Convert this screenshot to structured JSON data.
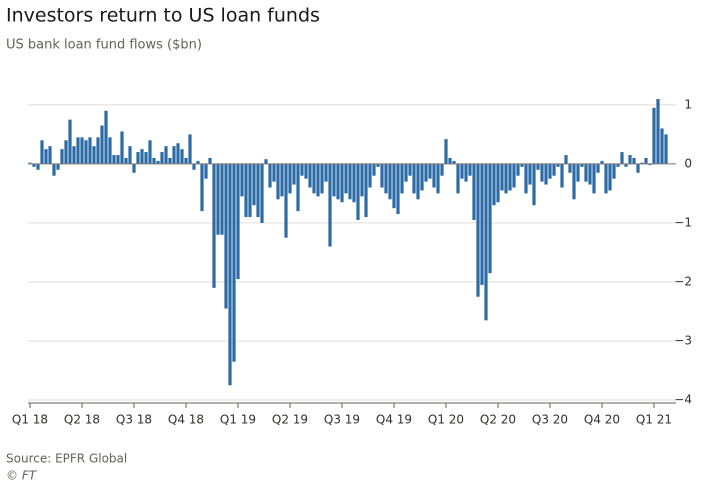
{
  "chart_data": {
    "type": "bar",
    "title": "Investors return to US loan funds",
    "subtitle": "US bank loan fund flows ($bn)",
    "source": "Source: EPFR Global",
    "credit": "© FT",
    "color": "#2c6aa6",
    "categories": [
      "Q1 18",
      null,
      null,
      null,
      null,
      null,
      null,
      null,
      null,
      null,
      null,
      null,
      null,
      "Q2 18",
      null,
      null,
      null,
      null,
      null,
      null,
      null,
      null,
      null,
      null,
      null,
      null,
      "Q3 18",
      null,
      null,
      null,
      null,
      null,
      null,
      null,
      null,
      null,
      null,
      null,
      null,
      "Q4 18",
      null,
      null,
      null,
      null,
      null,
      null,
      null,
      null,
      null,
      null,
      null,
      null,
      "Q1 19",
      null,
      null,
      null,
      null,
      null,
      null,
      null,
      null,
      null,
      null,
      null,
      null,
      "Q2 19",
      null,
      null,
      null,
      null,
      null,
      null,
      null,
      null,
      null,
      null,
      null,
      null,
      "Q3 19",
      null,
      null,
      null,
      null,
      null,
      null,
      null,
      null,
      null,
      null,
      null,
      null,
      "Q4 19",
      null,
      null,
      null,
      null,
      null,
      null,
      null,
      null,
      null,
      null,
      null,
      null,
      "Q1 20",
      null,
      null,
      null,
      null,
      null,
      null,
      null,
      null,
      null,
      null,
      null,
      null,
      "Q2 20",
      null,
      null,
      null,
      null,
      null,
      null,
      null,
      null,
      null,
      null,
      null,
      null,
      "Q3 20",
      null,
      null,
      null,
      null,
      null,
      null,
      null,
      null,
      null,
      null,
      null,
      null,
      "Q4 20",
      null,
      null,
      null,
      null,
      null,
      null,
      null,
      null,
      null,
      null,
      null,
      null,
      "Q1 21",
      null,
      null,
      null
    ],
    "values": [
      0.02,
      -0.05,
      -0.1,
      0.4,
      0.25,
      0.3,
      -0.2,
      -0.1,
      0.25,
      0.4,
      0.75,
      0.3,
      0.45,
      0.45,
      0.4,
      0.45,
      0.3,
      0.45,
      0.65,
      0.9,
      0.45,
      0.15,
      0.15,
      0.55,
      0.1,
      0.3,
      -0.15,
      0.2,
      0.25,
      0.2,
      0.4,
      0.1,
      0.05,
      0.2,
      0.3,
      0.1,
      0.3,
      0.35,
      0.25,
      0.1,
      0.5,
      -0.1,
      0.05,
      -0.8,
      -0.25,
      0.1,
      -2.1,
      -1.2,
      -1.2,
      -2.45,
      -3.75,
      -3.35,
      -1.95,
      -0.55,
      -0.9,
      -0.9,
      -0.7,
      -0.9,
      -1.0,
      0.08,
      -0.4,
      -0.3,
      -0.6,
      -0.55,
      -1.25,
      -0.5,
      -0.35,
      -0.8,
      -0.2,
      -0.25,
      -0.4,
      -0.5,
      -0.55,
      -0.5,
      -0.3,
      -1.4,
      -0.55,
      -0.6,
      -0.65,
      -0.5,
      -0.6,
      -0.65,
      -0.95,
      -0.55,
      -0.9,
      -0.4,
      -0.2,
      -0.05,
      -0.4,
      -0.5,
      -0.6,
      -0.75,
      -0.85,
      -0.5,
      -0.3,
      -0.2,
      -0.5,
      -0.6,
      -0.45,
      -0.3,
      -0.25,
      -0.4,
      -0.5,
      -0.2,
      0.42,
      0.1,
      0.05,
      -0.5,
      -0.25,
      -0.3,
      -0.2,
      -0.95,
      -2.25,
      -2.05,
      -2.65,
      -1.85,
      -0.7,
      -0.65,
      -0.45,
      -0.5,
      -0.45,
      -0.4,
      -0.2,
      -0.05,
      -0.5,
      -0.35,
      -0.7,
      -0.1,
      -0.3,
      -0.35,
      -0.25,
      -0.2,
      -0.05,
      -0.4,
      0.15,
      -0.15,
      -0.6,
      -0.3,
      -0.05,
      -0.3,
      -0.35,
      -0.5,
      -0.15,
      0.05,
      -0.5,
      -0.45,
      -0.25,
      -0.05,
      0.2,
      -0.05,
      0.15,
      0.1,
      -0.15,
      0.02,
      0.1,
      -0.02,
      0.95,
      1.1,
      0.6,
      0.5
    ],
    "ylim": [
      -4.05,
      1.15
    ],
    "yticks": [
      1,
      0,
      {
        "value": -1,
        "label": "−1"
      },
      {
        "value": -2,
        "label": "−2"
      },
      {
        "value": -3,
        "label": "−3"
      },
      {
        "value": -4,
        "label": "−4"
      }
    ],
    "grid": true
  }
}
